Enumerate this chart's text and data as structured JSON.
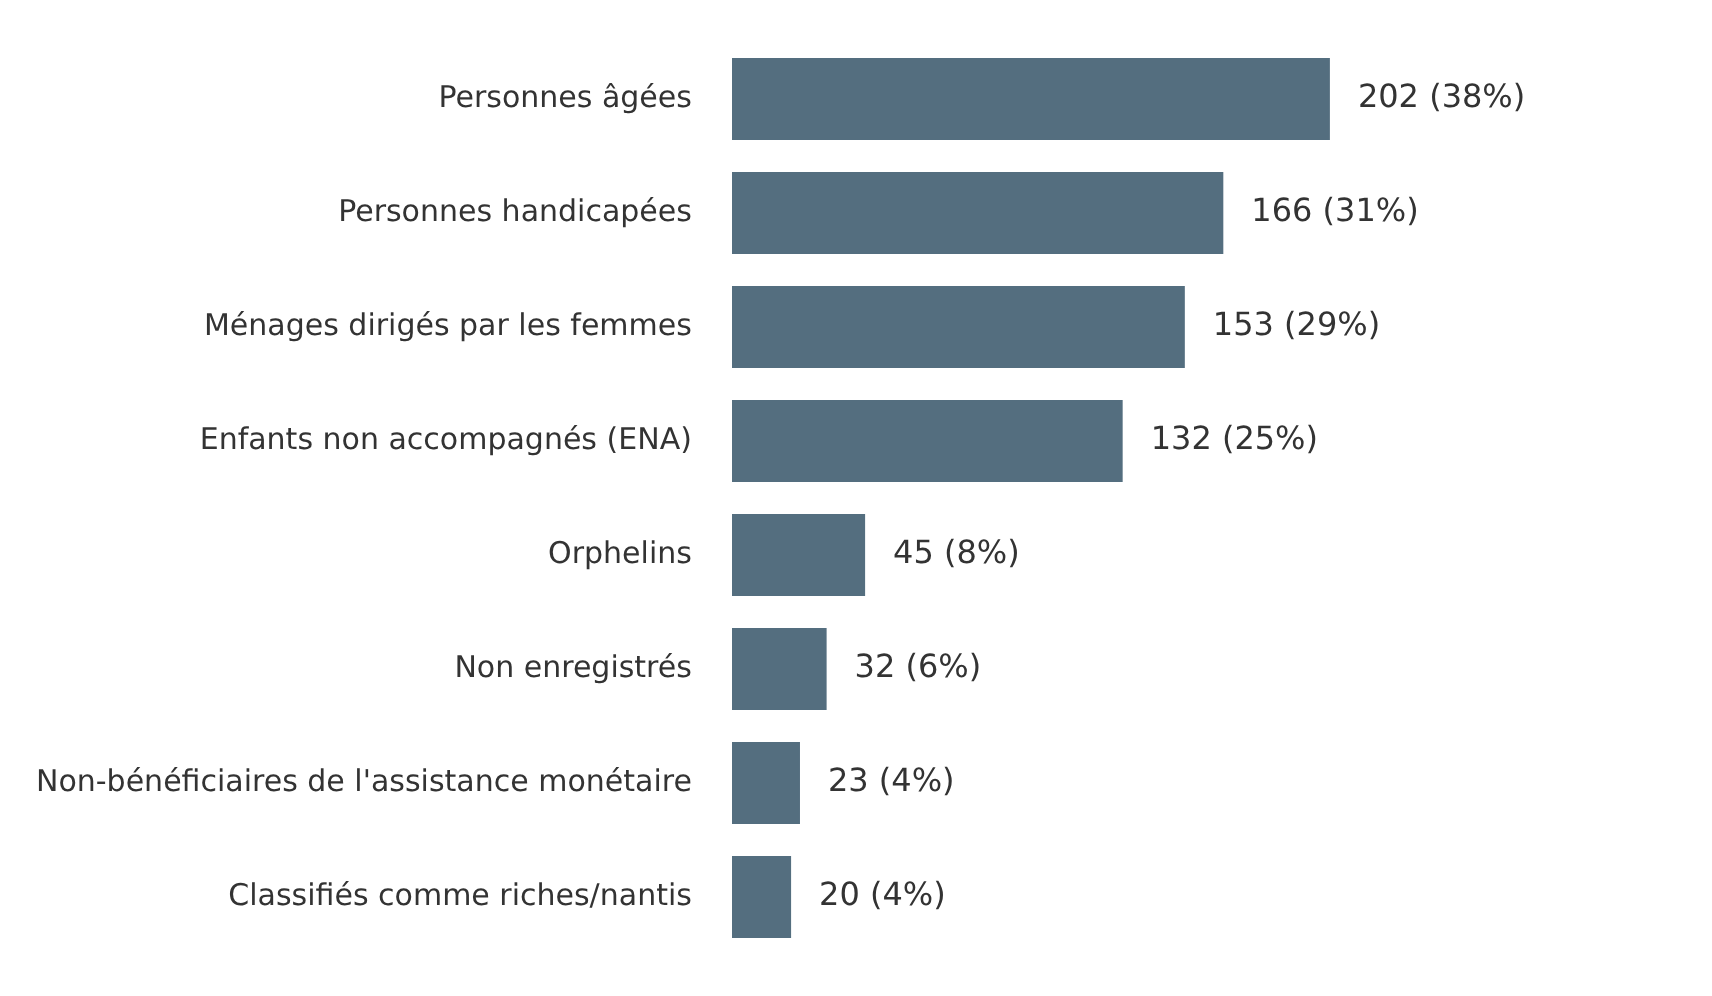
{
  "chart_data": {
    "type": "bar",
    "orientation": "horizontal",
    "categories": [
      "Personnes âgées",
      "Personnes handicapées",
      "Ménages dirigés par les femmes",
      "Enfants non accompagnés (ENA)",
      "Orphelins",
      "Non enregistrés",
      "Non-bénéficiaires de l'assistance monétaire",
      "Classifiés comme riches/nantis"
    ],
    "values": [
      202,
      166,
      153,
      132,
      45,
      32,
      23,
      20
    ],
    "value_labels": [
      "202 (38%)",
      "166 (31%)",
      "153 (29%)",
      "132 (25%)",
      "45 (8%)",
      "32 (6%)",
      "23 (4%)",
      "20 (4%)"
    ],
    "color": "#546e7f",
    "legend": false,
    "tick_labels": "y"
  }
}
